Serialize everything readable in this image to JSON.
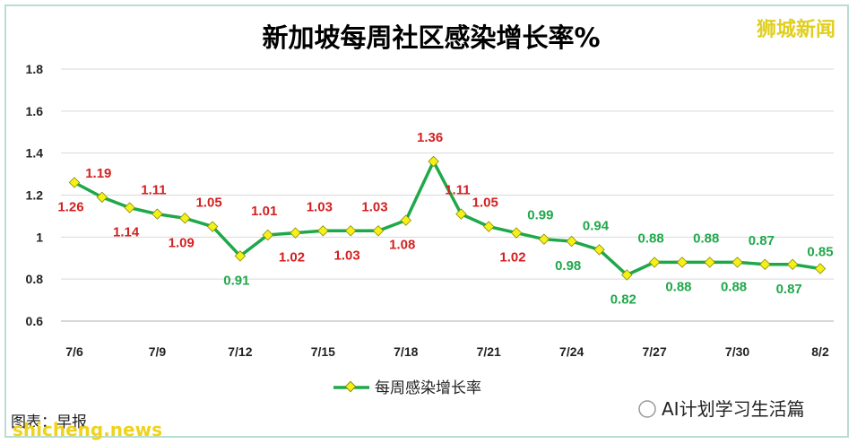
{
  "brand": "狮城新闻",
  "watermark": "AI计划学习生活篇",
  "footer_text": "图表：早报",
  "footer_latin": "shicheng.news",
  "colors": {
    "line": "#1fa84a",
    "marker_fill": "#f4f01a",
    "marker_stroke": "#8a8a00",
    "label_red": "#d42020",
    "label_green": "#1fa84a",
    "grid": "#d9d9d9",
    "brand": "#e0cf1e"
  },
  "chart_data": {
    "type": "line",
    "title": "新加坡每周社区感染增长率%",
    "xlabel": "",
    "ylabel": "",
    "ylim": [
      0.6,
      1.8
    ],
    "yticks": [
      "0.6",
      "0.8",
      "1",
      "1.2",
      "1.4",
      "1.6",
      "1.8"
    ],
    "x_tick_labels": [
      "7/6",
      "7/9",
      "7/12",
      "7/15",
      "7/18",
      "7/21",
      "7/24",
      "7/27",
      "7/30",
      "8/2"
    ],
    "grid": true,
    "legend_position": "bottom",
    "series": [
      {
        "name": "每周感染增长率",
        "x": [
          "7/6",
          "7/7",
          "7/8",
          "7/9",
          "7/10",
          "7/11",
          "7/12",
          "7/13",
          "7/14",
          "7/15",
          "7/16",
          "7/17",
          "7/18",
          "7/19",
          "7/20",
          "7/21",
          "7/22",
          "7/23",
          "7/24",
          "7/25",
          "7/26",
          "7/27",
          "7/28",
          "7/29",
          "7/30",
          "7/31",
          "8/1",
          "8/2"
        ],
        "values": [
          1.26,
          1.19,
          1.14,
          1.11,
          1.09,
          1.05,
          0.91,
          1.01,
          1.02,
          1.03,
          1.03,
          1.03,
          1.08,
          1.36,
          1.11,
          1.05,
          1.02,
          0.99,
          0.98,
          0.94,
          0.82,
          0.88,
          0.88,
          0.88,
          0.88,
          0.87,
          0.87,
          0.85
        ],
        "labels": [
          "1.26",
          "1.19",
          "1.14",
          "1.11",
          "1.09",
          "1.05",
          "0.91",
          "1.01",
          "1.02",
          "1.03",
          "1.03",
          "1.03",
          "1.08",
          "1.36",
          "1.11",
          "1.05",
          "1.02",
          "0.99",
          "0.98",
          "0.94",
          "0.82",
          "0.88",
          "0.88",
          "0.88",
          "0.88",
          "0.87",
          "0.87",
          "0.85"
        ],
        "label_color": [
          "red",
          "red",
          "red",
          "red",
          "red",
          "red",
          "green",
          "red",
          "red",
          "red",
          "red",
          "red",
          "red",
          "red",
          "red",
          "red",
          "red",
          "green",
          "green",
          "green",
          "green",
          "green",
          "green",
          "green",
          "green",
          "green",
          "green",
          "green"
        ],
        "label_pos": [
          "below",
          "above",
          "below",
          "above",
          "below",
          "above",
          "below",
          "above",
          "below",
          "above",
          "below",
          "above",
          "below",
          "above",
          "above",
          "above",
          "below",
          "above",
          "below",
          "above",
          "below",
          "above",
          "below",
          "above",
          "below",
          "above",
          "below",
          "above"
        ]
      }
    ]
  }
}
